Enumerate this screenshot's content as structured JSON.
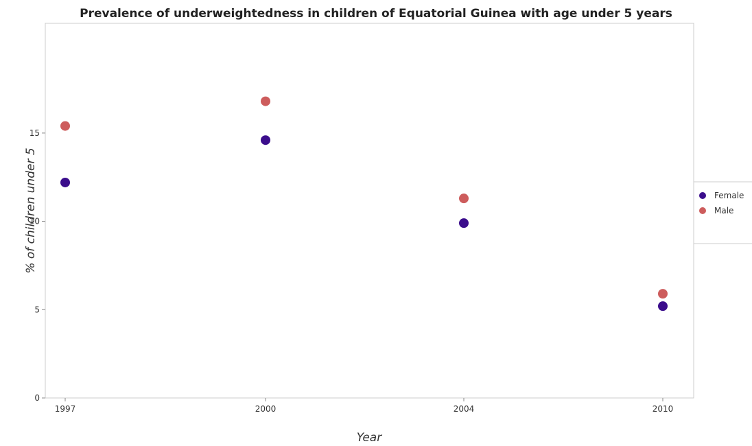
{
  "chart_data": {
    "type": "scatter",
    "title": "Prevalence of underweightedness in children of Equatorial Guinea with age under 5 years",
    "xlabel": "Year",
    "ylabel": "% of children under 5",
    "categories": [
      "1997",
      "2000",
      "2004",
      "2010"
    ],
    "yticks": [
      "0",
      "5",
      "10",
      "15"
    ],
    "ylim": [
      0,
      17.5
    ],
    "grid": false,
    "legend_position": "right",
    "series": [
      {
        "name": "Female",
        "color": "#3b0d8c",
        "values": [
          12.2,
          14.6,
          9.9,
          5.2
        ]
      },
      {
        "name": "Male",
        "color": "#cd5c5c",
        "values": [
          15.4,
          16.8,
          11.3,
          5.9
        ]
      }
    ]
  }
}
